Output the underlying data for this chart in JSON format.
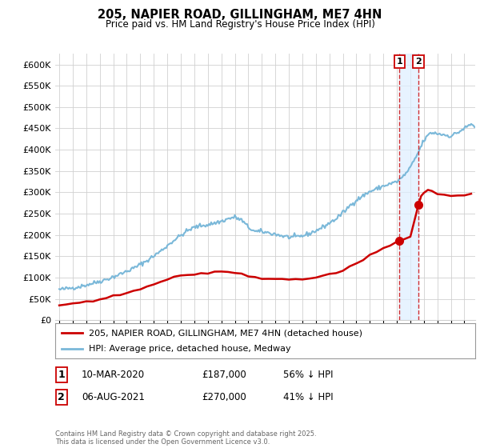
{
  "title": "205, NAPIER ROAD, GILLINGHAM, ME7 4HN",
  "subtitle": "Price paid vs. HM Land Registry's House Price Index (HPI)",
  "ytick_values": [
    0,
    50000,
    100000,
    150000,
    200000,
    250000,
    300000,
    350000,
    400000,
    450000,
    500000,
    550000,
    600000
  ],
  "ylim": [
    0,
    625000
  ],
  "xlim_start": 1994.7,
  "xlim_end": 2025.8,
  "hpi_color": "#7ab8d9",
  "price_color": "#cc0000",
  "marker1_date": 2020.19,
  "marker1_price": 187000,
  "marker1_label": "10-MAR-2020",
  "marker1_amount": "£187,000",
  "marker1_pct": "56% ↓ HPI",
  "marker2_date": 2021.59,
  "marker2_price": 270000,
  "marker2_label": "06-AUG-2021",
  "marker2_amount": "£270,000",
  "marker2_pct": "41% ↓ HPI",
  "legend_line1": "205, NAPIER ROAD, GILLINGHAM, ME7 4HN (detached house)",
  "legend_line2": "HPI: Average price, detached house, Medway",
  "footnote": "Contains HM Land Registry data © Crown copyright and database right 2025.\nThis data is licensed under the Open Government Licence v3.0.",
  "bg_color": "#ffffff",
  "grid_color": "#d0d0d0",
  "shade_color": "#ddeeff"
}
